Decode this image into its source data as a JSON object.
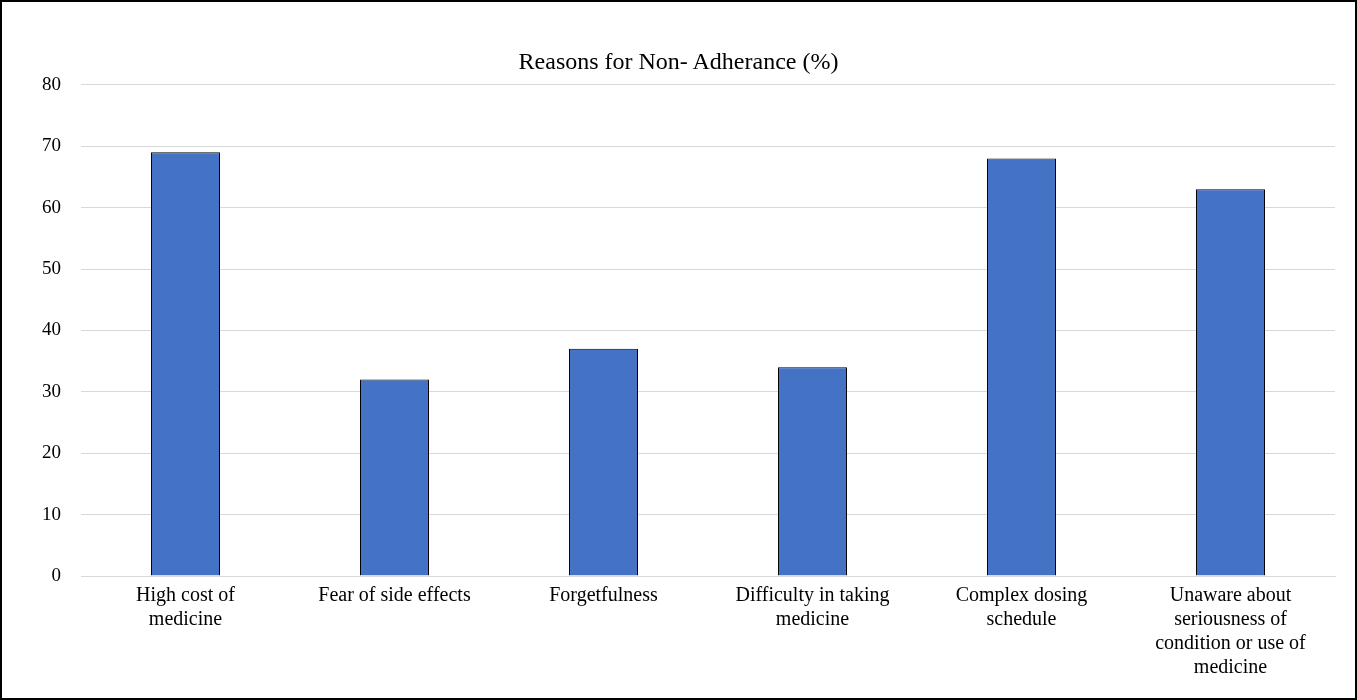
{
  "chart_data": {
    "type": "bar",
    "title": "Reasons for Non- Adherance (%)",
    "categories": [
      "High cost of medicine",
      "Fear of side effects",
      "Forgetfulness",
      "Difficulty in taking medicine",
      "Complex dosing schedule",
      "Unaware about seriousness of condition or use of medicine"
    ],
    "values": [
      69,
      32,
      37,
      34,
      68,
      63
    ],
    "color": "#4472c4",
    "ylim": [
      0,
      80
    ],
    "yticks": [
      0,
      10,
      20,
      30,
      40,
      50,
      60,
      70,
      80
    ],
    "grid": "y",
    "legend": false
  }
}
